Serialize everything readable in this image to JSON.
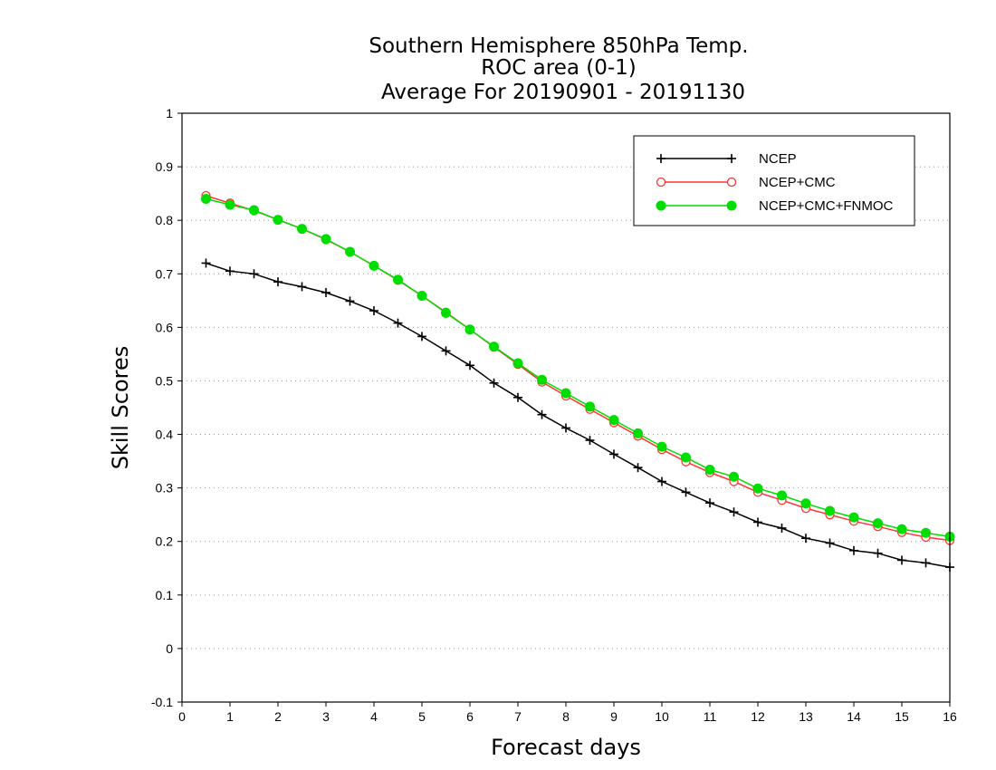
{
  "chart_data": {
    "type": "line",
    "title": [
      "Southern Hemisphere 850hPa Temp.",
      "ROC area (0-1)",
      "Average For 20190901 - 20191130"
    ],
    "xlabel": "Forecast days",
    "ylabel": "Skill Scores",
    "xlim": [
      0,
      16
    ],
    "ylim": [
      -0.1,
      1
    ],
    "xticks": [
      "0",
      "1",
      "2",
      "3",
      "4",
      "5",
      "6",
      "7",
      "8",
      "9",
      "10",
      "11",
      "12",
      "13",
      "14",
      "15",
      "16"
    ],
    "yticks": [
      "-0.1",
      "0",
      "0.1",
      "0.2",
      "0.3",
      "0.4",
      "0.5",
      "0.6",
      "0.7",
      "0.8",
      "0.9",
      "1"
    ],
    "grid": "horizontal-dotted",
    "legend_position": "top-right",
    "x": [
      0.5,
      1,
      1.5,
      2,
      2.5,
      3,
      3.5,
      4,
      4.5,
      5,
      5.5,
      6,
      6.5,
      7,
      7.5,
      8,
      8.5,
      9,
      9.5,
      10,
      10.5,
      11,
      11.5,
      12,
      12.5,
      13,
      13.5,
      14,
      14.5,
      15,
      15.5,
      16
    ],
    "series": [
      {
        "name": "NCEP",
        "color": "#000000",
        "marker": "plus",
        "values": [
          0.72,
          0.705,
          0.7,
          0.685,
          0.676,
          0.665,
          0.649,
          0.631,
          0.608,
          0.583,
          0.556,
          0.529,
          0.496,
          0.469,
          0.437,
          0.412,
          0.389,
          0.363,
          0.338,
          0.312,
          0.292,
          0.272,
          0.255,
          0.236,
          0.225,
          0.206,
          0.197,
          0.183,
          0.178,
          0.165,
          0.16,
          0.152
        ]
      },
      {
        "name": "NCEP+CMC",
        "color": "#ff3333",
        "marker": "open-circle",
        "values": [
          0.846,
          0.832,
          0.818,
          0.801,
          0.784,
          0.764,
          0.741,
          0.715,
          0.688,
          0.659,
          0.628,
          0.596,
          0.563,
          0.531,
          0.498,
          0.472,
          0.447,
          0.422,
          0.397,
          0.372,
          0.349,
          0.329,
          0.312,
          0.292,
          0.277,
          0.262,
          0.25,
          0.238,
          0.228,
          0.217,
          0.208,
          0.202
        ]
      },
      {
        "name": "NCEP+CMC+FNMOC",
        "color": "#00dd00",
        "marker": "filled-circle",
        "values": [
          0.84,
          0.829,
          0.819,
          0.801,
          0.784,
          0.765,
          0.741,
          0.715,
          0.689,
          0.659,
          0.627,
          0.596,
          0.564,
          0.533,
          0.502,
          0.477,
          0.452,
          0.427,
          0.402,
          0.377,
          0.357,
          0.334,
          0.321,
          0.299,
          0.286,
          0.271,
          0.257,
          0.245,
          0.234,
          0.223,
          0.216,
          0.209
        ]
      }
    ]
  }
}
